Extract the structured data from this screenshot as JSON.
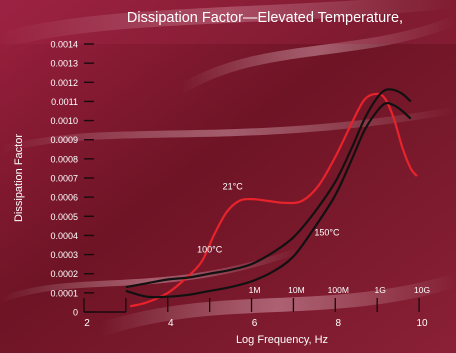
{
  "chart_data": {
    "type": "line",
    "title": "Dissipation Factor—Elevated Temperature,",
    "xlabel": "Log Frequency, Hz",
    "ylabel": "Dissipation Factor",
    "xlim": [
      2,
      10.5
    ],
    "ylim": [
      0,
      0.0014
    ],
    "x_ticks": [
      2,
      4,
      6,
      8,
      10
    ],
    "x_ticks_minor": [
      3,
      5,
      7,
      9
    ],
    "y_ticks": [
      "0",
      "0.0001",
      "0.0002",
      "0.0003",
      "0.0004",
      "0.0005",
      "0.0006",
      "0.0007",
      "0.0008",
      "0.0009",
      "0.0010",
      "0.0011",
      "0.0012",
      "0.0013",
      "0.0014"
    ],
    "frequency_labels": [
      {
        "x": 6,
        "label": "1M"
      },
      {
        "x": 7,
        "label": "10M"
      },
      {
        "x": 8,
        "label": "100M"
      },
      {
        "x": 9,
        "label": "1G"
      },
      {
        "x": 10,
        "label": "10G"
      }
    ],
    "grid": false,
    "series": [
      {
        "name": "21°C",
        "color": "#e8232b",
        "x": [
          3.1,
          3.5,
          4.0,
          4.4,
          4.8,
          5.1,
          5.4,
          5.7,
          6.0,
          6.4,
          6.8,
          7.2,
          7.6,
          8.0,
          8.4,
          8.7,
          9.0,
          9.2,
          9.4,
          9.6,
          9.8,
          9.95
        ],
        "values": [
          3e-05,
          5e-05,
          0.0001,
          0.00017,
          0.00026,
          0.0004,
          0.00052,
          0.00058,
          0.00059,
          0.00058,
          0.00057,
          0.00058,
          0.00066,
          0.00081,
          0.00099,
          0.00111,
          0.00114,
          0.00111,
          0.00101,
          0.00086,
          0.00075,
          0.00071
        ]
      },
      {
        "name": "150°C",
        "color": "#111111",
        "x": [
          3.0,
          3.5,
          4.0,
          4.5,
          5.0,
          5.5,
          6.0,
          6.5,
          7.0,
          7.5,
          8.0,
          8.4,
          8.7,
          9.0,
          9.2,
          9.4,
          9.6,
          9.8
        ],
        "values": [
          0.00013,
          0.00015,
          0.00017,
          0.00018,
          0.0002,
          0.00022,
          0.00025,
          0.00031,
          0.00039,
          0.00052,
          0.00068,
          0.00086,
          0.00101,
          0.00112,
          0.00116,
          0.00116,
          0.00114,
          0.0011
        ]
      },
      {
        "name": "100°C",
        "color": "#111111",
        "x": [
          3.0,
          3.5,
          4.0,
          4.5,
          5.0,
          5.5,
          6.0,
          6.5,
          7.0,
          7.5,
          8.0,
          8.4,
          8.7,
          9.0,
          9.2,
          9.4,
          9.6,
          9.8
        ],
        "values": [
          0.00011,
          8e-05,
          8e-05,
          9e-05,
          0.00011,
          0.00013,
          0.00016,
          0.00021,
          0.00029,
          0.00044,
          0.00061,
          0.0008,
          0.00095,
          0.00105,
          0.00109,
          0.00108,
          0.00105,
          0.00101
        ]
      }
    ],
    "annotations": [
      {
        "text": "21°C",
        "x": 5.55,
        "y": 0.00064
      },
      {
        "text": "100°C",
        "x": 5.0,
        "y": 0.00031
      },
      {
        "text": "150°C",
        "x": 7.8,
        "y": 0.0004
      }
    ]
  }
}
